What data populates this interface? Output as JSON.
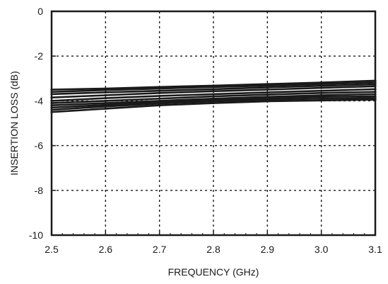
{
  "chart_data": {
    "type": "line",
    "title": "",
    "xlabel": "FREQUENCY (GHz)",
    "ylabel": "INSERTION LOSS (dB)",
    "xlim": [
      2.5,
      3.1
    ],
    "ylim": [
      -10,
      0
    ],
    "x_ticks": [
      2.5,
      2.6,
      2.7,
      2.8,
      2.9,
      3.0,
      3.1
    ],
    "x_tick_labels": [
      "2.5",
      "2.6",
      "2.7",
      "2.8",
      "2.9",
      "3.0",
      "3.1"
    ],
    "y_ticks": [
      0,
      -2,
      -4,
      -6,
      -8,
      -10
    ],
    "y_tick_labels": [
      "0",
      "-2",
      "-4",
      "-6",
      "-8",
      "-10"
    ],
    "grid": "dotted",
    "legend": "none",
    "x": [
      2.5,
      2.6,
      2.7,
      2.8,
      2.9,
      3.0,
      3.1
    ],
    "series": [
      {
        "values": [
          -3.5,
          -3.45,
          -3.38,
          -3.32,
          -3.25,
          -3.18,
          -3.1
        ]
      },
      {
        "values": [
          -3.6,
          -3.52,
          -3.45,
          -3.38,
          -3.32,
          -3.25,
          -3.18
        ]
      },
      {
        "values": [
          -3.7,
          -3.62,
          -3.55,
          -3.48,
          -3.4,
          -3.33,
          -3.26
        ]
      },
      {
        "values": [
          -3.85,
          -3.75,
          -3.65,
          -3.57,
          -3.5,
          -3.42,
          -3.35
        ]
      },
      {
        "values": [
          -4.0,
          -3.88,
          -3.78,
          -3.7,
          -3.62,
          -3.55,
          -3.48
        ]
      },
      {
        "values": [
          -4.1,
          -4.0,
          -3.9,
          -3.8,
          -3.72,
          -3.65,
          -3.6
        ]
      },
      {
        "values": [
          -4.2,
          -4.1,
          -4.0,
          -3.9,
          -3.82,
          -3.75,
          -3.7
        ]
      },
      {
        "values": [
          -4.3,
          -4.18,
          -4.05,
          -3.95,
          -3.88,
          -3.82,
          -3.8
        ]
      },
      {
        "values": [
          -4.4,
          -4.25,
          -4.12,
          -4.02,
          -3.95,
          -3.9,
          -3.88
        ]
      },
      {
        "values": [
          -4.5,
          -4.35,
          -4.2,
          -4.1,
          -4.02,
          -3.98,
          -3.95
        ]
      }
    ],
    "line_color": "#1a1a1a",
    "grid_color": "#1a1a1a"
  }
}
